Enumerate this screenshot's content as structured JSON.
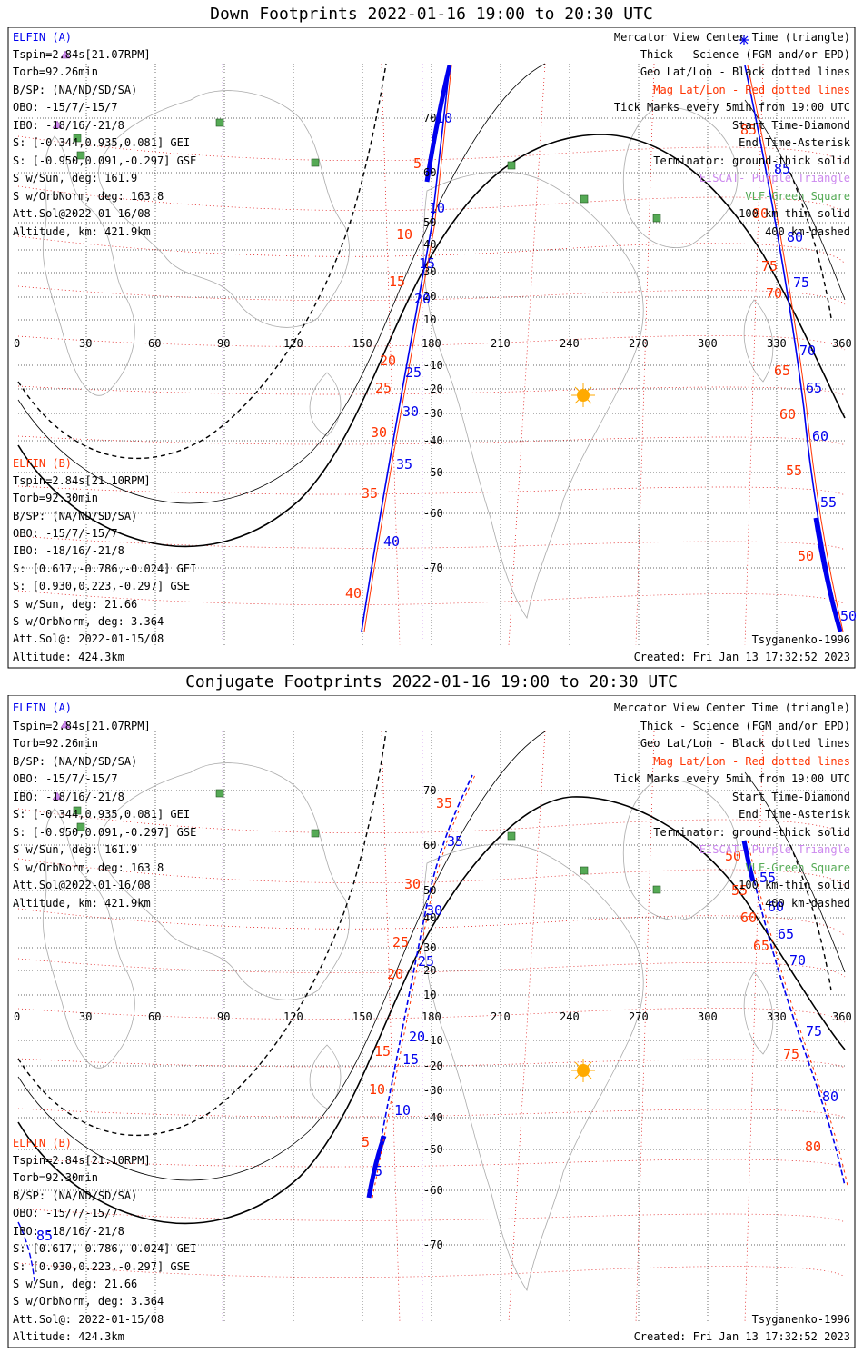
{
  "colors": {
    "blue": "#0000ee",
    "red": "#ff3300",
    "mag_grid": "#dd0000",
    "purple": "#cc88ee",
    "green": "#55aa55",
    "coast": "#aaaaaa",
    "sun": "#ffaa00"
  },
  "panels": [
    {
      "title": "Down Footprints 2022-01-16 19:00 to 20:30 UTC",
      "ellipse_a": {
        "label": "ELFIN (A)",
        "lines": [
          "Tspin=2.84s[21.07RPM]",
          "Torb=92.26min",
          "B/SP: (NA/ND/SD/SA)",
          "OBO: -15/7/-15/7",
          "IBO: -18/16/-21/8",
          "S: [-0.344,0.935,0.081] GEI",
          "S: [-0.950,0.091,-0.297] GSE",
          "S w/Sun, deg: 161.9",
          "S w/OrbNorm, deg: 163.8",
          "Att.Sol@2022-01-16/08",
          "Altitude, km: 421.9km"
        ]
      },
      "ellipse_b": {
        "label": "ELFIN (B)",
        "lines": [
          "Tspin=2.84s[21.10RPM]",
          "Torb=92.30min",
          "B/SP: (NA/ND/SD/SA)",
          "OBO: -15/7/-15/7",
          "IBO: -18/16/-21/8",
          "S: [0.617,-0.786,-0.024] GEI",
          "S: [0.930,0.223,-0.297] GSE",
          "S w/Sun, deg: 21.66",
          "S w/OrbNorm, deg: 3.364",
          "Att.Sol@: 2022-01-15/08",
          "Altitude: 424.3km"
        ]
      },
      "legend": [
        "Mercator View Center Time (triangle)",
        "Thick - Science (FGM and/or EPD)",
        "Geo Lat/Lon - Black dotted lines",
        "Mag Lat/Lon - Red dotted lines",
        "Tick Marks every 5min from 19:00 UTC",
        "Start Time-Diamond",
        "End Time-Asterisk",
        "Terminator: ground-thick solid",
        "EISCAT- Purple Triangle",
        "VLF-Green Square",
        "100 km-thin solid",
        "400 km-dashed"
      ],
      "model": "Tsyganenko-1996",
      "created": "Created: Fri Jan 13 17:32:52 2023",
      "lon_labels": [
        "0",
        "30",
        "60",
        "90",
        "120",
        "150",
        "180",
        "210",
        "240",
        "270",
        "300",
        "330",
        "360"
      ],
      "lat_labels": [
        "70",
        "60",
        "50",
        "40",
        "30",
        "20",
        "10",
        "-10",
        "-20",
        "-30",
        "-40",
        "-50",
        "-60",
        "-70"
      ],
      "track_a_ticks": [
        "10",
        "15",
        "20",
        "25",
        "30",
        "35",
        "40"
      ],
      "track_a_east_ticks": [
        "5",
        "85",
        "80",
        "75",
        "70",
        "65",
        "60",
        "55",
        "50"
      ],
      "track_b_ticks": [
        "5",
        "10",
        "15",
        "20",
        "25",
        "30",
        "35",
        "40"
      ],
      "track_b_east_ticks": [
        "85",
        "80",
        "75",
        "70",
        "65",
        "60",
        "55",
        "50"
      ]
    },
    {
      "title": "Conjugate Footprints 2022-01-16 19:00 to 20:30 UTC",
      "ellipse_a": {
        "label": "ELFIN (A)",
        "lines": [
          "Tspin=2.84s[21.07RPM]",
          "Torb=92.26min",
          "B/SP: (NA/ND/SD/SA)",
          "OBO: -15/7/-15/7",
          "IBO: -18/16/-21/8",
          "S: [-0.344,0.935,0.081] GEI",
          "S: [-0.950,0.091,-0.297] GSE",
          "S w/Sun, deg: 161.9",
          "S w/OrbNorm, deg: 163.8",
          "Att.Sol@2022-01-16/08",
          "Altitude, km: 421.9km"
        ]
      },
      "ellipse_b": {
        "label": "ELFIN (B)",
        "lines": [
          "Tspin=2.84s[21.10RPM]",
          "Torb=92.30min",
          "B/SP: (NA/ND/SD/SA)",
          "OBO: -15/7/-15/7",
          "IBO: -18/16/-21/8",
          "S: [0.617,-0.786,-0.024] GEI",
          "S: [0.930,0.223,-0.297] GSE",
          "S w/Sun, deg: 21.66",
          "S w/OrbNorm, deg: 3.364",
          "Att.Sol@: 2022-01-15/08",
          "Altitude: 424.3km"
        ]
      },
      "legend": [
        "Mercator View Center Time (triangle)",
        "Thick - Science (FGM and/or EPD)",
        "Geo Lat/Lon - Black dotted lines",
        "Mag Lat/Lon - Red dotted lines",
        "Tick Marks every 5min from 19:00 UTC",
        "Start Time-Diamond",
        "End Time-Asterisk",
        "Terminator: ground-thick solid",
        "EISCAT- Purple Triangle",
        "VLF-Green Square",
        "100 km-thin solid",
        "400 km-dashed"
      ],
      "model": "Tsyganenko-1996",
      "created": "Created: Fri Jan 13 17:32:52 2023",
      "lon_labels": [
        "0",
        "30",
        "60",
        "90",
        "120",
        "150",
        "180",
        "210",
        "240",
        "270",
        "300",
        "330",
        "360"
      ],
      "lat_labels": [
        "70",
        "60",
        "50",
        "40",
        "30",
        "20",
        "10",
        "-10",
        "-20",
        "-30",
        "-40",
        "-50",
        "-60",
        "-70"
      ],
      "track_a_ticks": [
        "35",
        "30",
        "25",
        "20",
        "15",
        "10",
        "5"
      ],
      "track_a_east_ticks": [
        "55",
        "60",
        "65",
        "70",
        "75",
        "80",
        "85"
      ],
      "track_b_ticks": [
        "35",
        "30",
        "25",
        "20",
        "15",
        "10",
        "5"
      ],
      "track_b_east_ticks": [
        "50",
        "55",
        "60",
        "65",
        "75",
        "80"
      ]
    }
  ]
}
